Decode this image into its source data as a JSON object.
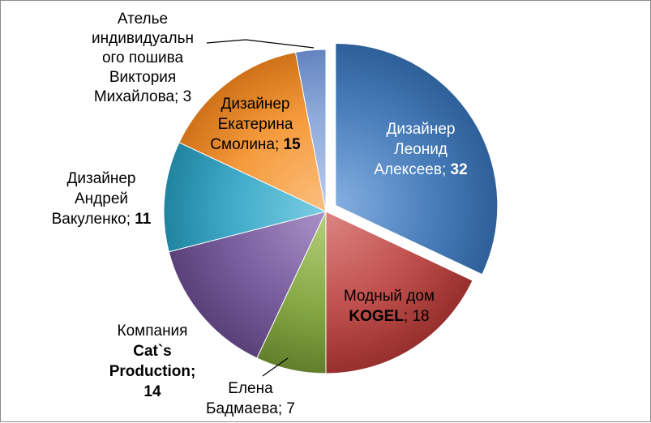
{
  "chart_data": {
    "type": "pie",
    "exploded_index": 0,
    "slices": [
      {
        "lines": [
          [
            "Дизайнер"
          ],
          [
            "Леонид"
          ],
          [
            "Алексеев; ",
            "32"
          ]
        ],
        "value": 32,
        "color": "#4a7ebb",
        "color_light": "#84aee0",
        "color_dark": "#2d5f99"
      },
      {
        "lines": [
          [
            "Модный дом"
          ],
          [
            "KOGEL",
            "; 18"
          ]
        ],
        "value": 18,
        "color": "#c0504d",
        "color_light": "#dc8582",
        "color_dark": "#962f2d"
      },
      {
        "lines": [
          [
            "Елена"
          ],
          [
            "Бадмаева; 7"
          ]
        ],
        "value": 7,
        "color": "#86a844",
        "color_light": "#b6d07d",
        "color_dark": "#627e2c"
      },
      {
        "lines": [
          [
            "Компания"
          ],
          [
            "Cat`s"
          ],
          [
            "Production;"
          ],
          [
            "14"
          ]
        ],
        "value": 14,
        "color": "#7b5fa0",
        "color_light": "#a992c7",
        "color_dark": "#5a4179"
      },
      {
        "lines": [
          [
            "Дизайнер"
          ],
          [
            "Андрей"
          ],
          [
            "Вакуленко; ",
            "11"
          ]
        ],
        "value": 11,
        "color": "#3eaac8",
        "color_light": "#7ccde3",
        "color_dark": "#21839f"
      },
      {
        "lines": [
          [
            "Дизайнер"
          ],
          [
            "Екатерина"
          ],
          [
            "Смолина; ",
            "15"
          ]
        ],
        "value": 15,
        "color": "#f59a3c",
        "color_light": "#fbc07f",
        "color_dark": "#cf7118"
      },
      {
        "lines": [
          [
            "Ателье"
          ],
          [
            "индивидуальн"
          ],
          [
            "ого пошива"
          ],
          [
            "Виктория"
          ],
          [
            "Михайлова; 3"
          ]
        ],
        "value": 3,
        "color": "#8eaadb",
        "color_light": "#bacbea",
        "color_dark": "#6384bf"
      }
    ]
  }
}
